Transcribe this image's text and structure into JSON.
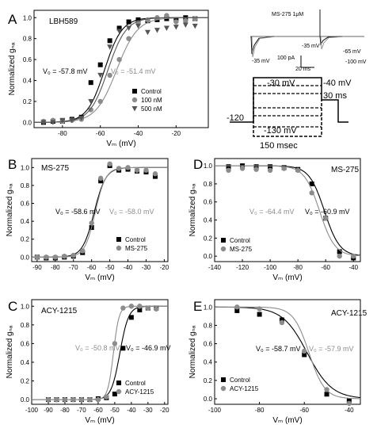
{
  "colors": {
    "control": "#000000",
    "treated": "#8c8c8c",
    "treated2": "#555555"
  },
  "panels": [
    {
      "letter": "A",
      "title": "LBH589",
      "xticks": [
        -80,
        -60,
        -40,
        -20
      ],
      "yticks": [
        "0.0",
        "0.2",
        "0.4",
        "0.6",
        "0.8",
        "1.0"
      ],
      "xlim": [
        -95,
        -3
      ],
      "ylim": [
        -0.05,
        1.07
      ],
      "v0_control": "V₀ = -57.8 mV",
      "v0_treated": "V₀ = -51.4 mV",
      "legend": [
        "Control",
        "100 nM",
        "500 nM"
      ],
      "xlabel": "Vₘ (mV)",
      "ylabel": "Normalized gₙₐ"
    },
    {
      "letter": "B",
      "title": "MS-275",
      "xticks": [
        -90,
        -80,
        -70,
        -60,
        -50,
        -40,
        -30,
        -20
      ],
      "yticks": [
        "0.0",
        "0.2",
        "0.4",
        "0.6",
        "0.8",
        "1.0"
      ],
      "xlim": [
        -93,
        -18
      ],
      "ylim": [
        -0.05,
        1.1
      ],
      "v0_control": "V₀ = -58.6 mV",
      "v0_treated": "V₀ = -58.0 mV",
      "legend": [
        "Control",
        "MS-275"
      ],
      "xlabel": "Vₘ (mV)",
      "ylabel": "Normalized gₙₐ"
    },
    {
      "letter": "D",
      "title": "MS-275",
      "xticks": [
        -140,
        -120,
        -100,
        -80,
        -60,
        -40
      ],
      "yticks": [
        "0.0",
        "0.2",
        "0.4",
        "0.6",
        "0.8",
        "1.0"
      ],
      "xlim": [
        -140,
        -35
      ],
      "ylim": [
        -0.06,
        1.08
      ],
      "v0_control": "V₀ = -60.9 mV",
      "v0_treated": "V₀ = -64.4 mV",
      "legend": [
        "Control",
        "MS-275"
      ],
      "xlabel": "Vₘ (mV)",
      "ylabel": "Normalized gₙₐ"
    },
    {
      "letter": "C",
      "title": "ACY-1215",
      "xticks": [
        -100,
        -90,
        -80,
        -70,
        -60,
        -50,
        -40,
        -30,
        -20
      ],
      "yticks": [
        "0.0",
        "0.2",
        "0.4",
        "0.6",
        "0.8",
        "1.0"
      ],
      "xlim": [
        -100,
        -18
      ],
      "ylim": [
        -0.05,
        1.07
      ],
      "v0_control": "V₀ = -46.9 mV",
      "v0_treated": "V₀ = -50.8 mV",
      "legend": [
        "Control",
        "ACY-1215"
      ],
      "xlabel": "Vₘ (mV)",
      "ylabel": "Normalized gₙₐ"
    },
    {
      "letter": "E",
      "title": "ACY-1215",
      "xticks": [
        -100,
        -80,
        -60,
        -40
      ],
      "yticks": [
        "0.0",
        "0.2",
        "0.4",
        "0.6",
        "0.8",
        "1.0"
      ],
      "xlim": [
        -100,
        -35
      ],
      "ylim": [
        -0.06,
        1.08
      ],
      "v0_control": "V₀ = -58.7 mV",
      "v0_treated": "V₀ = -57.9 mV",
      "legend": [
        "Control",
        "ACY-1215"
      ],
      "xlabel": "Vₘ (mV)",
      "ylabel": "Normalized gₙₐ"
    }
  ],
  "inset": {
    "title": "MS-275 1μM",
    "trace_labels": [
      "-35 mV",
      "-35 mV",
      "-65 mV",
      "-100 mV"
    ],
    "scale_current": "100 pA",
    "scale_time": "20 ms"
  },
  "protocol": {
    "hold": "-120",
    "top": "-30 mV",
    "bottom": "-130 mV",
    "test": "-40 mV",
    "test_duration": "30 ms",
    "prepulse_duration": "150 msec"
  },
  "chart_data": [
    {
      "panel": "A",
      "type": "scatter",
      "title": "LBH589",
      "xlabel": "Vm (mV)",
      "ylabel": "Normalized gNa",
      "xlim": [
        -95,
        -3
      ],
      "ylim": [
        -0.05,
        1.07
      ],
      "series": [
        {
          "name": "Control",
          "marker": "square",
          "fit_v0": -57.8,
          "fit_k": 4.6,
          "x": [
            -90,
            -85,
            -80,
            -75,
            -70,
            -65,
            -60,
            -55,
            -50,
            -45,
            -40,
            -35,
            -30,
            -25,
            -20,
            -15,
            -10
          ],
          "y": [
            0.0,
            0.01,
            0.01,
            0.03,
            0.05,
            0.38,
            0.55,
            0.78,
            0.9,
            0.96,
            0.98,
            0.97,
            0.98,
            0.99,
            0.98,
            1.0,
            0.99
          ]
        },
        {
          "name": "100 nM",
          "marker": "circle",
          "fit_v0": -51.4,
          "fit_k": 5.5,
          "x": [
            -90,
            -85,
            -80,
            -75,
            -70,
            -65,
            -60,
            -55,
            -50,
            -45,
            -40,
            -35,
            -30,
            -25,
            -20,
            -15,
            -10
          ],
          "y": [
            0.01,
            0.02,
            0.01,
            0.02,
            0.03,
            0.12,
            0.2,
            0.45,
            0.6,
            0.8,
            0.95,
            0.98,
            1.0,
            1.02,
            0.96,
            0.97,
            0.99
          ]
        },
        {
          "name": "500 nM",
          "marker": "triangle-down",
          "fit_v0": -56.0,
          "fit_k": 4.8,
          "x": [
            -90,
            -85,
            -80,
            -75,
            -70,
            -65,
            -60,
            -55,
            -50,
            -45,
            -40,
            -35,
            -30,
            -25,
            -20,
            -15,
            -10
          ],
          "y": [
            0.0,
            0.0,
            0.02,
            0.02,
            0.04,
            0.2,
            0.45,
            0.72,
            0.87,
            0.9,
            0.92,
            0.86,
            0.88,
            0.9,
            0.91,
            0.93,
            0.92
          ]
        }
      ]
    },
    {
      "panel": "B",
      "type": "scatter",
      "title": "MS-275",
      "xlabel": "Vm (mV)",
      "ylabel": "Normalized gNa",
      "xlim": [
        -93,
        -18
      ],
      "ylim": [
        -0.05,
        1.1
      ],
      "series": [
        {
          "name": "Control",
          "marker": "square",
          "fit_v0": -58.6,
          "fit_k": 3.2,
          "x": [
            -90,
            -85,
            -80,
            -75,
            -70,
            -65,
            -60,
            -55,
            -50,
            -45,
            -40,
            -35,
            -30,
            -25
          ],
          "y": [
            0.0,
            -0.01,
            -0.01,
            0.0,
            0.01,
            0.05,
            0.33,
            0.85,
            1.02,
            0.97,
            0.98,
            0.96,
            0.95,
            0.9
          ]
        },
        {
          "name": "MS-275",
          "marker": "circle",
          "fit_v0": -58.0,
          "fit_k": 2.9,
          "x": [
            -90,
            -85,
            -80,
            -75,
            -70,
            -65,
            -60,
            -55,
            -50,
            -45,
            -40,
            -35,
            -30,
            -25
          ],
          "y": [
            0.0,
            0.0,
            0.0,
            0.01,
            0.02,
            0.07,
            0.38,
            0.88,
            1.04,
            0.99,
            1.0,
            0.97,
            0.97,
            0.93
          ]
        }
      ]
    },
    {
      "panel": "D",
      "type": "scatter",
      "title": "MS-275",
      "xlabel": "Vm (mV)",
      "ylabel": "Normalized gNa",
      "xlim": [
        -140,
        -35
      ],
      "ylim": [
        -0.06,
        1.08
      ],
      "series": [
        {
          "name": "Control",
          "marker": "square",
          "fit_v0": -60.9,
          "fit_k": -5.5,
          "x": [
            -130,
            -120,
            -110,
            -100,
            -90,
            -80,
            -70,
            -60,
            -50,
            -40
          ],
          "y": [
            0.99,
            1.0,
            0.99,
            0.99,
            0.98,
            0.96,
            0.8,
            0.42,
            0.05,
            -0.02
          ]
        },
        {
          "name": "MS-275",
          "marker": "circle",
          "fit_v0": -64.4,
          "fit_k": -5.5,
          "x": [
            -130,
            -120,
            -110,
            -100,
            -90,
            -80,
            -70,
            -60,
            -50,
            -40
          ],
          "y": [
            0.95,
            0.97,
            0.96,
            0.95,
            0.97,
            0.95,
            0.7,
            0.42,
            0.0,
            0.0
          ]
        }
      ]
    },
    {
      "panel": "C",
      "type": "scatter",
      "title": "ACY-1215",
      "xlabel": "Vm (mV)",
      "ylabel": "Normalized gNa",
      "xlim": [
        -100,
        -18
      ],
      "ylim": [
        -0.05,
        1.07
      ],
      "series": [
        {
          "name": "Control",
          "marker": "square",
          "fit_v0": -46.9,
          "fit_k": 2.6,
          "x": [
            -90,
            -85,
            -80,
            -75,
            -70,
            -65,
            -60,
            -55,
            -50,
            -45,
            -40,
            -35,
            -30,
            -25
          ],
          "y": [
            0.0,
            0.0,
            0.0,
            0.0,
            0.0,
            0.0,
            0.01,
            0.02,
            0.06,
            0.55,
            0.88,
            0.96,
            0.98,
            0.98
          ]
        },
        {
          "name": "ACY-1215",
          "marker": "circle",
          "fit_v0": -50.8,
          "fit_k": 1.7,
          "x": [
            -90,
            -85,
            -80,
            -75,
            -70,
            -65,
            -60,
            -55,
            -50,
            -45,
            -40,
            -35,
            -30,
            -25
          ],
          "y": [
            0.0,
            0.0,
            0.0,
            0.0,
            0.0,
            0.0,
            0.0,
            0.03,
            0.6,
            0.98,
            1.0,
            1.0,
            0.98,
            0.97
          ]
        }
      ]
    },
    {
      "panel": "E",
      "type": "scatter",
      "title": "ACY-1215",
      "xlabel": "Vm (mV)",
      "ylabel": "Normalized gNa",
      "xlim": [
        -100,
        -35
      ],
      "ylim": [
        -0.06,
        1.08
      ],
      "series": [
        {
          "name": "Control",
          "marker": "square",
          "fit_v0": -58.7,
          "fit_k": -5.5,
          "x": [
            -90,
            -80,
            -70,
            -60,
            -50,
            -40
          ],
          "y": [
            0.96,
            0.92,
            0.86,
            0.48,
            0.05,
            -0.02
          ]
        },
        {
          "name": "ACY-1215",
          "marker": "circle",
          "fit_v0": -57.9,
          "fit_k": -3.5,
          "x": [
            -90,
            -80,
            -70,
            -60,
            -50,
            -40
          ],
          "y": [
            1.0,
            0.98,
            0.83,
            0.52,
            0.1,
            -0.05
          ]
        }
      ]
    }
  ]
}
